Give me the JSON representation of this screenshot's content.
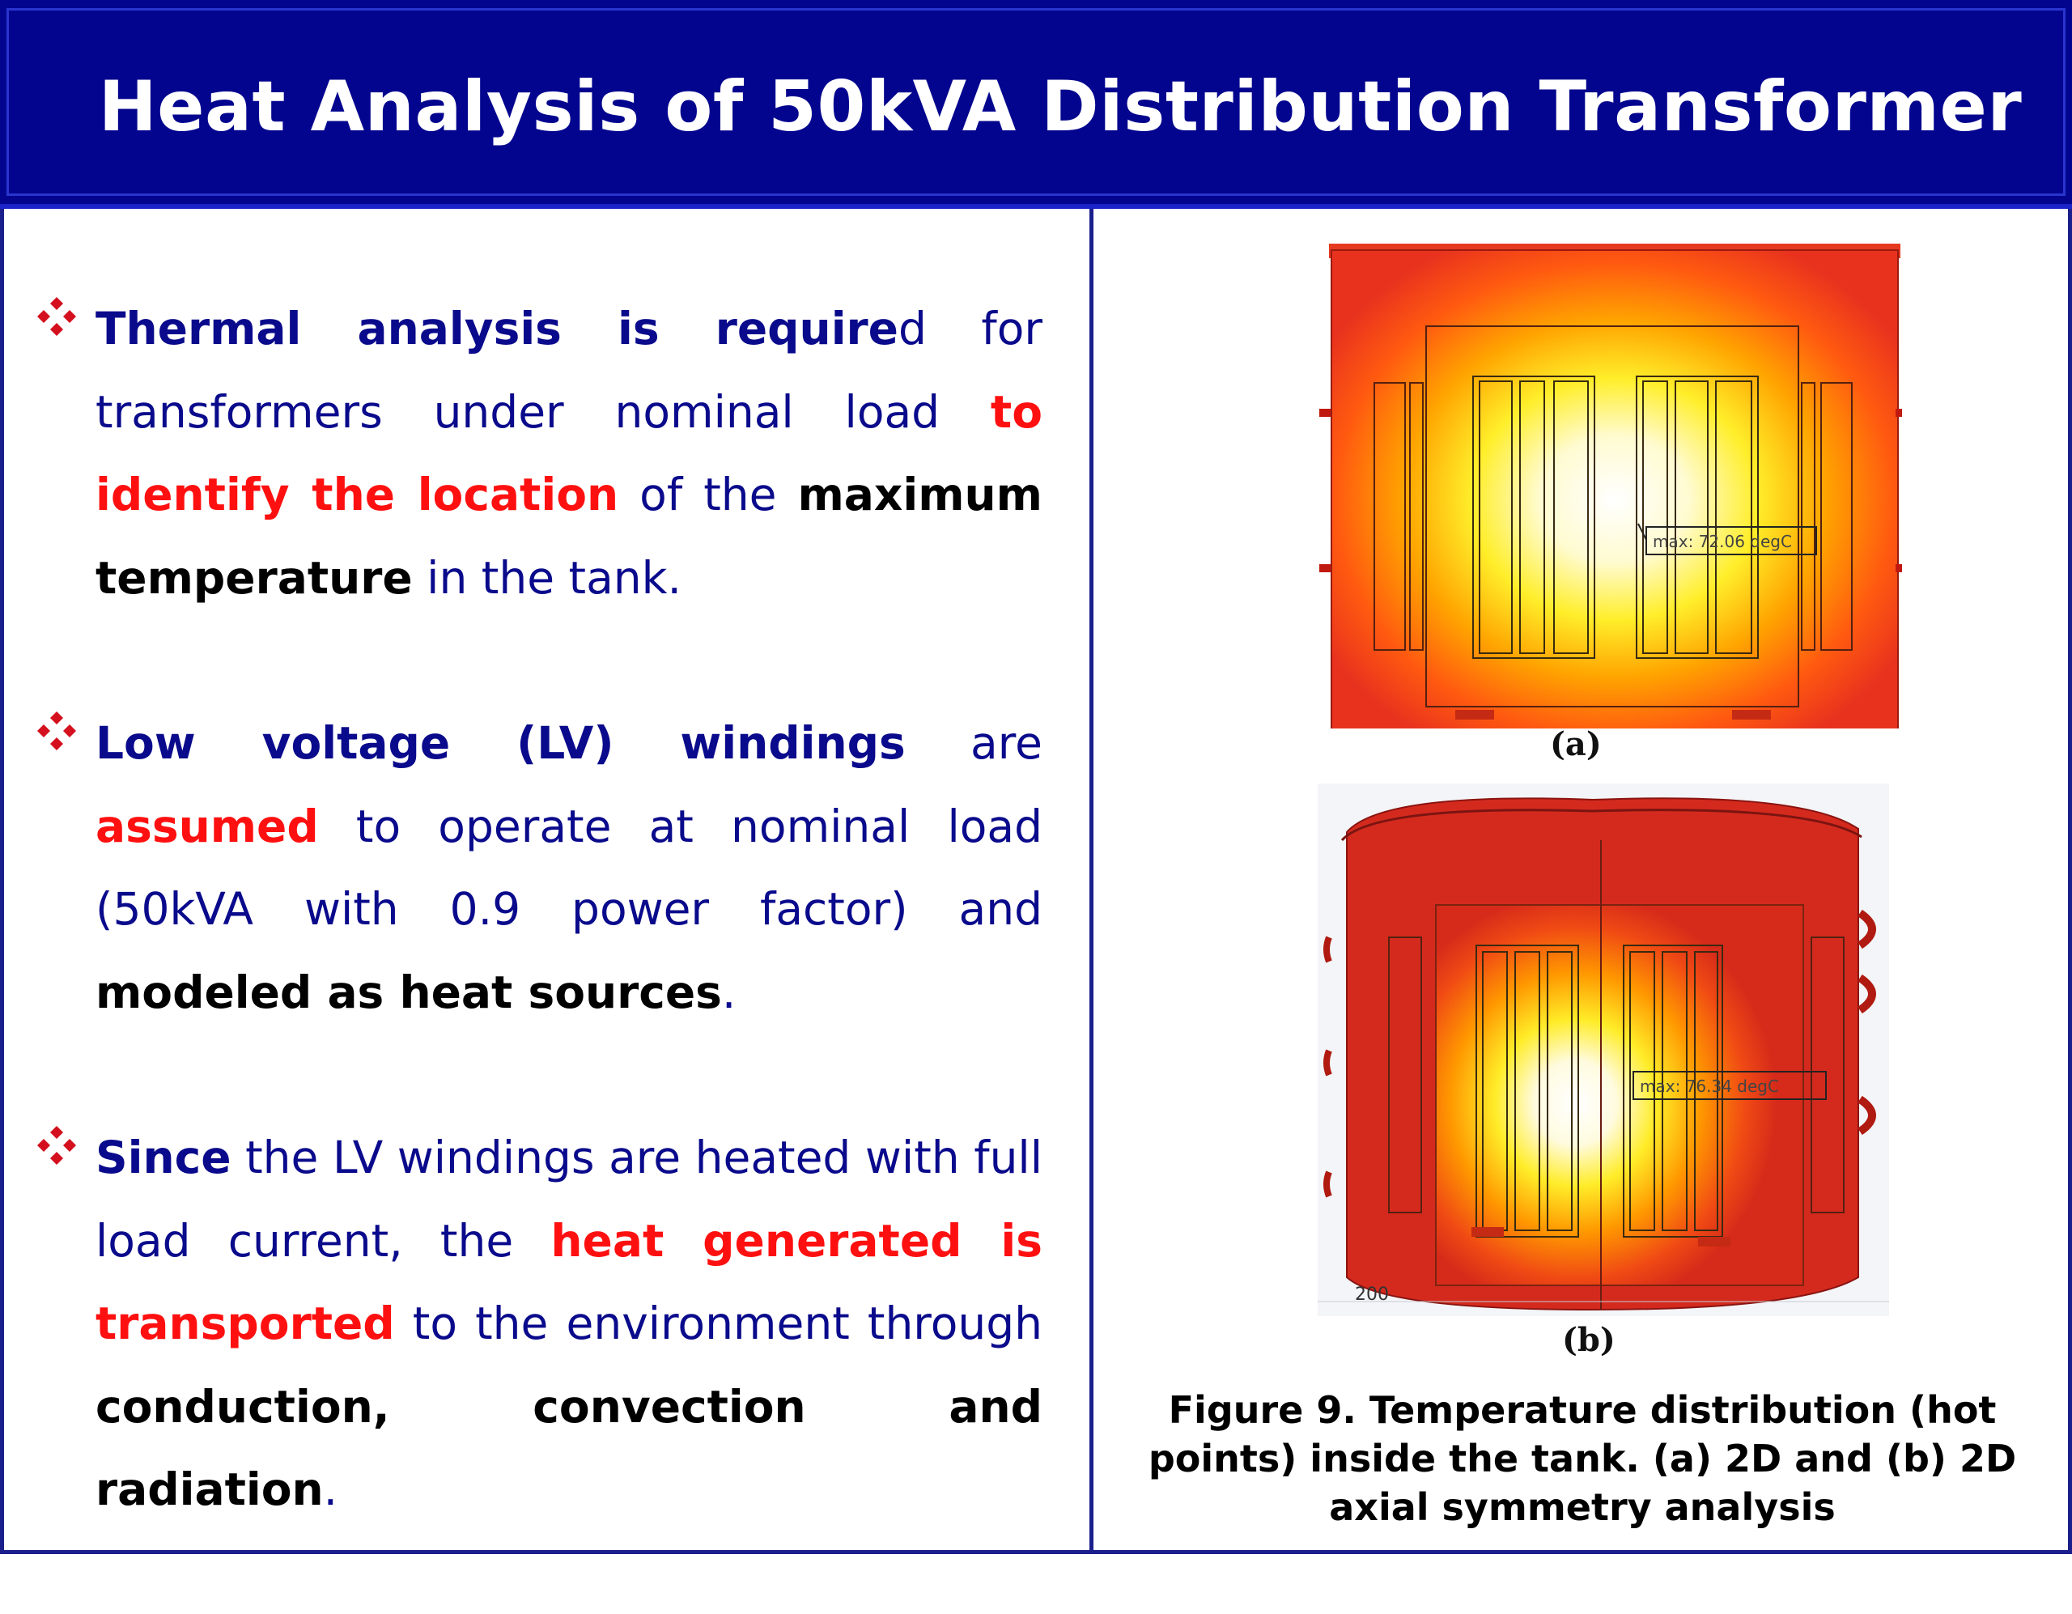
{
  "title": "Heat Analysis of 50kVA Distribution Transformer",
  "bullets": [
    {
      "segments": [
        {
          "text": "Thermal analysis is require",
          "style": "nav"
        },
        {
          "text": "d for transformers under nominal load ",
          "style": "normal"
        },
        {
          "text": "to identify the location",
          "style": "red"
        },
        {
          "text": " of the ",
          "style": "normal"
        },
        {
          "text": "maximum temperature",
          "style": "blk"
        },
        {
          "text": " in the tank.",
          "style": "normal"
        }
      ]
    },
    {
      "segments": [
        {
          "text": "Low voltage (LV) windings",
          "style": "nav"
        },
        {
          "text": " are ",
          "style": "normal"
        },
        {
          "text": "assumed",
          "style": "red"
        },
        {
          "text": " to operate at nominal load (50kVA with 0.9 power factor) and ",
          "style": "normal"
        },
        {
          "text": "modeled as heat sources",
          "style": "blk"
        },
        {
          "text": ".",
          "style": "normal"
        }
      ]
    },
    {
      "segments": [
        {
          "text": "Since",
          "style": "nav"
        },
        {
          "text": " the LV windings are heated with full load current, the ",
          "style": "normal"
        },
        {
          "text": "heat generated is transported",
          "style": "red"
        },
        {
          "text": " to the environment through ",
          "style": "normal"
        },
        {
          "text": "conduction, convection and radiation",
          "style": "blk"
        },
        {
          "text": ".",
          "style": "normal"
        }
      ]
    }
  ],
  "figure": {
    "a": {
      "label": "(a)",
      "annotation": "max: 72.06 degC"
    },
    "b": {
      "label": "(b)",
      "annotation": "max: 76.34 degC",
      "axis_tick": "200"
    },
    "caption": "Figure 9. Temperature distribution (hot points) inside the tank. (a) 2D and (b) 2D axial symmetry analysis"
  },
  "colors": {
    "title_bg": "#04058e",
    "text_blue": "#0a0a8c",
    "emphasis_red": "#ff1010"
  }
}
